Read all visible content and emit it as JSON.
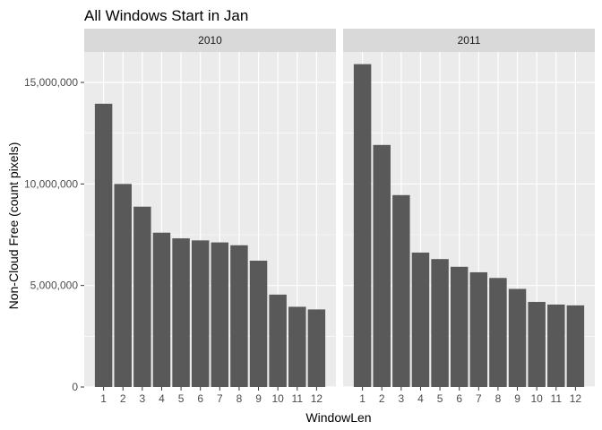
{
  "chart_data": {
    "type": "bar",
    "title": "All Windows Start in Jan",
    "xlabel": "WindowLen",
    "ylabel": "Non-Cloud Free (count pixels)",
    "categories": [
      "1",
      "2",
      "3",
      "4",
      "5",
      "6",
      "7",
      "8",
      "9",
      "10",
      "11",
      "12"
    ],
    "ylim": [
      0,
      16500000
    ],
    "yticks": [
      0,
      5000000,
      10000000,
      15000000
    ],
    "ytick_labels": [
      "0",
      "5,000,000",
      "10,000,000",
      "15,000,000"
    ],
    "bar_color": "#595959",
    "panel_bg": "#ebebeb",
    "strip_bg": "#d9d9d9",
    "grid": true,
    "panels": [
      {
        "label": "2010",
        "values": [
          13950000,
          10000000,
          8880000,
          7600000,
          7320000,
          7220000,
          7120000,
          6980000,
          6220000,
          4550000,
          3950000,
          3820000
        ]
      },
      {
        "label": "2011",
        "values": [
          15900000,
          11920000,
          9450000,
          6620000,
          6300000,
          5920000,
          5650000,
          5370000,
          4830000,
          4190000,
          4060000,
          4020000
        ]
      }
    ]
  }
}
